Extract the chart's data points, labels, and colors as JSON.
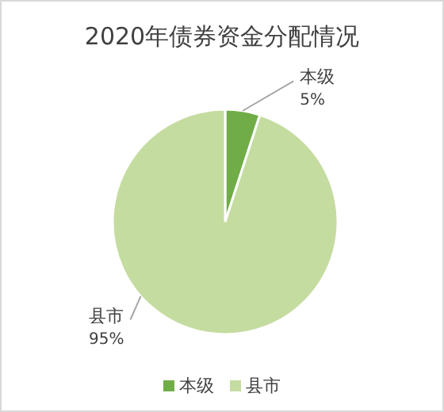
{
  "chart_data": {
    "type": "pie",
    "title": "2020年债券资金分配情况",
    "categories": [
      "本级",
      "县市"
    ],
    "values": [
      5,
      95
    ],
    "colors": [
      "#70ad47",
      "#c5dca0"
    ],
    "value_labels": [
      "5%",
      "95%"
    ],
    "legend": "bottom"
  }
}
